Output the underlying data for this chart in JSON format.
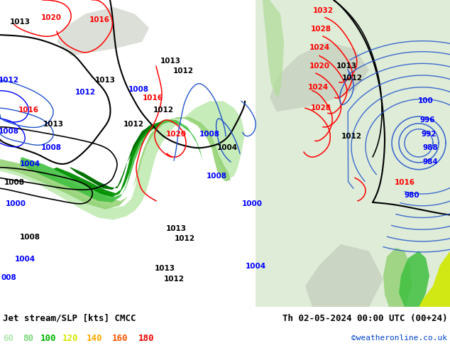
{
  "title_left": "Jet stream/SLP [kts] CMCC",
  "title_right": "Th 02-05-2024 00:00 UTC (00+24)",
  "credit": "©weatheronline.co.uk",
  "legend_values": [
    "60",
    "80",
    "100",
    "120",
    "140",
    "160",
    "180"
  ],
  "legend_colors": [
    "#b0e8b0",
    "#78d878",
    "#00b400",
    "#d4e800",
    "#ffaa00",
    "#ff5500",
    "#ee0000"
  ],
  "map_bg": "#c8e0b0",
  "bottom_bg": "#ffffff",
  "fig_width": 6.34,
  "fig_height": 4.9,
  "dpi": 100
}
